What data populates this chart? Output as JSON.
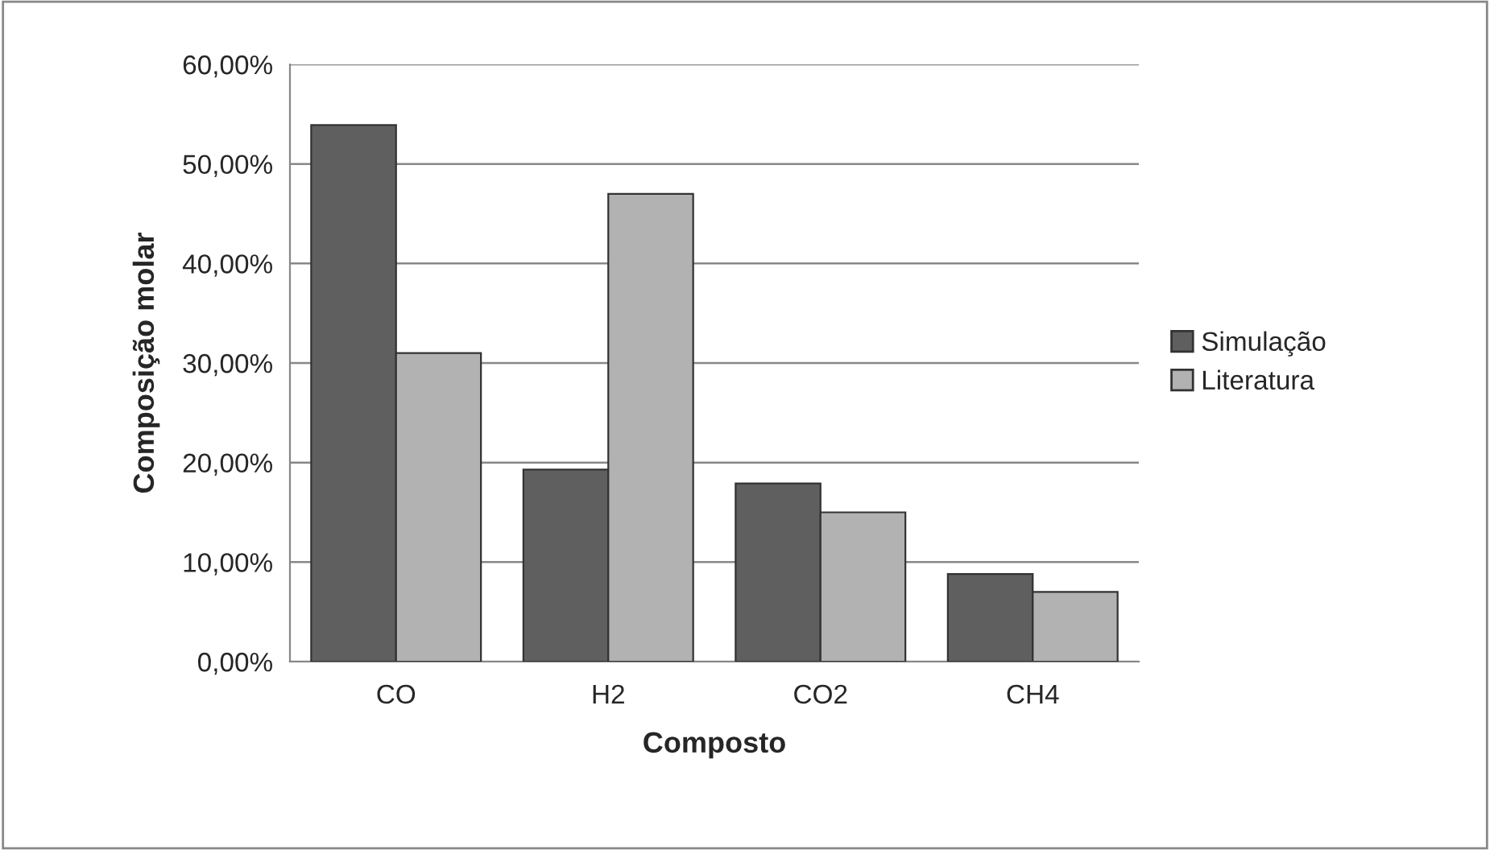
{
  "chart_data": {
    "type": "bar",
    "xlabel": "Composto",
    "ylabel": "Composição molar",
    "categories": [
      "CO",
      "H2",
      "CO2",
      "CH4"
    ],
    "series": [
      {
        "name": "Simulação",
        "color": "#5f5f5f",
        "values": [
          53.9,
          19.3,
          17.9,
          8.8
        ]
      },
      {
        "name": "Literatura",
        "color": "#b2b2b2",
        "values": [
          31.0,
          47.0,
          15.0,
          7.0
        ]
      }
    ],
    "ylim": [
      0,
      60
    ],
    "yticks": [
      {
        "value": 0,
        "label": "0,00%"
      },
      {
        "value": 10,
        "label": "10,00%"
      },
      {
        "value": 20,
        "label": "20,00%"
      },
      {
        "value": 30,
        "label": "30,00%"
      },
      {
        "value": 40,
        "label": "40,00%"
      },
      {
        "value": 50,
        "label": "50,00%"
      },
      {
        "value": 60,
        "label": "60,00%"
      }
    ],
    "grid": "y",
    "legend": "right"
  }
}
